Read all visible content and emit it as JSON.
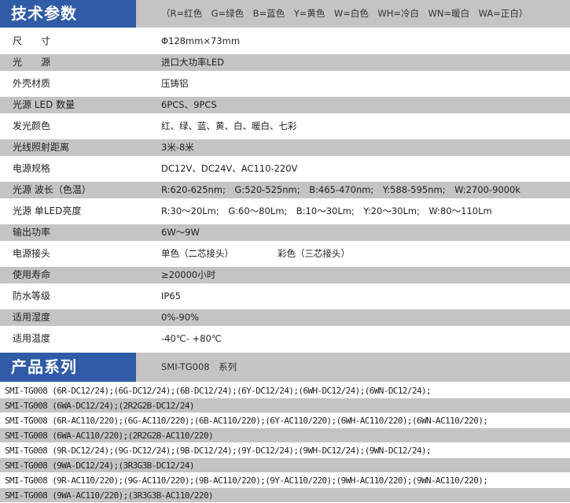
{
  "spec_header": {
    "title": "技术参数",
    "note": "（R=红色　G=绿色　B=蓝色　Y=黄色　W=白色　WH=冷白　WN=暖白　WA=正白）"
  },
  "specs": [
    {
      "label": "尺　　寸",
      "value": "Φ128mm×73mm"
    },
    {
      "label": "光　　源",
      "value": "进口大功率LED"
    },
    {
      "label": "外壳材质",
      "value": "压铸铝"
    },
    {
      "label": "光源 LED 数量",
      "value": "6PCS、9PCS"
    },
    {
      "label": "发光颜色",
      "value": "红、绿、蓝、黄、白、暖白、七彩"
    },
    {
      "label": "光线照射距离",
      "value": "3米-8米"
    },
    {
      "label": "电源规格",
      "value": "DC12V、DC24V、AC110-220V"
    },
    {
      "label": "光源 波长（色温）",
      "value": "R:620-625nm;　G:520-525nm;　B:465-470nm;　Y:588-595nm;　W:2700-9000k"
    },
    {
      "label": "光源 单LED亮度",
      "value": "R:30～20Lm;　G:60～80Lm;　B:10～30Lm;　Y:20～30Lm;　W:80～110Lm"
    },
    {
      "label": "输出功率",
      "value": "6W～9W"
    },
    {
      "label": "电源接头",
      "value": "单色（二芯接头）",
      "value2": "彩色（三芯接头）"
    },
    {
      "label": "使用寿命",
      "value": "≥20000小时"
    },
    {
      "label": "防水等级",
      "value": "IP65"
    },
    {
      "label": "适用湿度",
      "value": "0%-90%"
    },
    {
      "label": "适用温度",
      "value": "-40℃- +80℃"
    }
  ],
  "series_header": {
    "title": "产品系列",
    "note": "SMI-TG008　系列"
  },
  "series": [
    "SMI-TG008 (6R-DC12/24);(6G-DC12/24);(6B-DC12/24);(6Y-DC12/24);(6WH-DC12/24);(6WN-DC12/24);",
    "SMI-TG008 (6WA-DC12/24);(2R2G2B-DC12/24)",
    "SMI-TG008 (6R-AC110/220);(6G-AC110/220);(6B-AC110/220);(6Y-AC110/220);(6WH-AC110/220);(6WN-AC110/220);",
    "SMI-TG008 (6WA-AC110/220);(2R2G2B-AC110/220)",
    "SMI-TG008 (9R-DC12/24);(9G-DC12/24);(9B-DC12/24);(9Y-DC12/24);(9WH-DC12/24);(9WN-DC12/24);",
    "SMI-TG008 (9WA-DC12/24);(3R3G3B-DC12/24)",
    "SMI-TG008 (9R-AC110/220);(9G-AC110/220);(9B-AC110/220);(9Y-AC110/220);(9WH-AC110/220);(9WN-AC110/220);",
    "SMI-TG008 (9WA-AC110/220);(3R3G3B-AC110/220)"
  ],
  "colors": {
    "header_blue": "#2f5ba7",
    "band_gray": "#c4c4c6"
  }
}
